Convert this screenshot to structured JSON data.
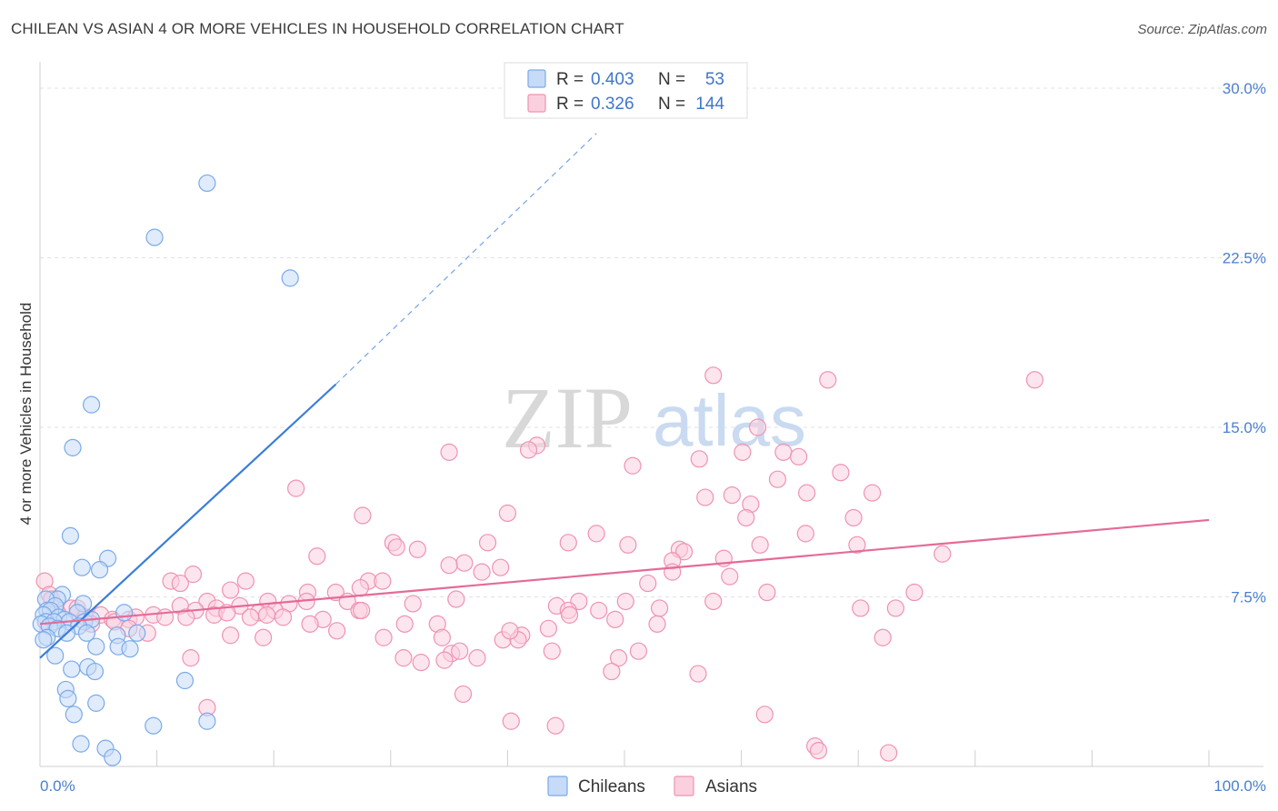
{
  "title": "CHILEAN VS ASIAN 4 OR MORE VEHICLES IN HOUSEHOLD CORRELATION CHART",
  "source": "Source: ZipAtlas.com",
  "watermark": {
    "zip": "ZIP",
    "atlas": "atlas"
  },
  "legend": {
    "r_label": "R =",
    "n_label": "N =",
    "series": [
      {
        "r": "0.403",
        "n": "53",
        "color": "#7aaae8",
        "fill": "#c6dbf7"
      },
      {
        "r": "0.326",
        "n": "144",
        "color": "#ee93b1",
        "fill": "#fbd0de"
      }
    ]
  },
  "bottom_legend": [
    {
      "label": "Chileans",
      "color": "#7aaae8",
      "fill": "#c6dbf7"
    },
    {
      "label": "Asians",
      "color": "#ee93b1",
      "fill": "#fbd0de"
    }
  ],
  "chart_data": {
    "type": "scatter",
    "title": "CHILEAN VS ASIAN 4 OR MORE VEHICLES IN HOUSEHOLD CORRELATION CHART",
    "xlabel": "",
    "ylabel": "4 or more Vehicles in Household",
    "xlim": [
      0,
      100
    ],
    "ylim": [
      0,
      30
    ],
    "x_tick_labels": [
      "0.0%",
      "100.0%"
    ],
    "y_ticks": [
      7.5,
      15.0,
      22.5,
      30.0
    ],
    "y_tick_labels": [
      "7.5%",
      "15.0%",
      "22.5%",
      "30.0%"
    ],
    "grid": true,
    "legend_position": "top-center",
    "series": [
      {
        "name": "Chileans",
        "color": "#3b7dd8",
        "marker_fill": "#c6dbf7",
        "marker_edge": "#7aaae8",
        "r": 0.403,
        "n": 53,
        "trend": {
          "x": [
            0,
            25.3
          ],
          "y": [
            4.8,
            16.9
          ],
          "dashed_to": [
            47.6,
            28.0
          ]
        },
        "points": [
          [
            14.3,
            25.8
          ],
          [
            9.8,
            23.4
          ],
          [
            21.4,
            21.6
          ],
          [
            4.4,
            16.0
          ],
          [
            2.8,
            14.1
          ],
          [
            2.6,
            10.2
          ],
          [
            5.8,
            9.2
          ],
          [
            3.6,
            8.8
          ],
          [
            5.1,
            8.7
          ],
          [
            1.9,
            7.6
          ],
          [
            1.5,
            7.4
          ],
          [
            0.5,
            7.4
          ],
          [
            1.3,
            7.1
          ],
          [
            3.7,
            7.2
          ],
          [
            0.6,
            6.9
          ],
          [
            0.9,
            6.9
          ],
          [
            3.2,
            6.8
          ],
          [
            0.3,
            6.7
          ],
          [
            1.6,
            6.6
          ],
          [
            2.1,
            6.5
          ],
          [
            0.5,
            6.4
          ],
          [
            1.2,
            6.4
          ],
          [
            2.5,
            6.4
          ],
          [
            3.8,
            6.4
          ],
          [
            4.4,
            6.5
          ],
          [
            0.1,
            6.3
          ],
          [
            0.8,
            6.2
          ],
          [
            1.5,
            6.1
          ],
          [
            3.3,
            6.2
          ],
          [
            4.0,
            5.9
          ],
          [
            2.3,
            5.9
          ],
          [
            0.6,
            5.7
          ],
          [
            0.3,
            5.6
          ],
          [
            8.3,
            5.9
          ],
          [
            7.2,
            6.8
          ],
          [
            6.6,
            5.8
          ],
          [
            6.7,
            5.3
          ],
          [
            4.8,
            5.3
          ],
          [
            7.7,
            5.2
          ],
          [
            1.3,
            4.9
          ],
          [
            4.1,
            4.4
          ],
          [
            2.7,
            4.3
          ],
          [
            4.7,
            4.2
          ],
          [
            12.4,
            3.8
          ],
          [
            2.2,
            3.4
          ],
          [
            2.4,
            3.0
          ],
          [
            4.8,
            2.8
          ],
          [
            2.9,
            2.3
          ],
          [
            9.7,
            1.8
          ],
          [
            14.3,
            2.0
          ],
          [
            3.5,
            1.0
          ],
          [
            5.6,
            0.8
          ],
          [
            6.2,
            0.4
          ]
        ]
      },
      {
        "name": "Asians",
        "color": "#e46b97",
        "marker_fill": "#fbd0de",
        "marker_edge": "#ee93b1",
        "r": 0.326,
        "n": 144,
        "trend": {
          "x": [
            0,
            100
          ],
          "y": [
            6.3,
            10.9
          ]
        },
        "points": [
          [
            57.6,
            17.3
          ],
          [
            67.4,
            17.1
          ],
          [
            85.1,
            17.1
          ],
          [
            61.4,
            15.0
          ],
          [
            42.5,
            14.2
          ],
          [
            41.8,
            14.0
          ],
          [
            35.0,
            13.9
          ],
          [
            60.1,
            13.9
          ],
          [
            63.6,
            13.9
          ],
          [
            64.9,
            13.7
          ],
          [
            56.4,
            13.6
          ],
          [
            50.7,
            13.3
          ],
          [
            68.5,
            13.0
          ],
          [
            63.1,
            12.7
          ],
          [
            21.9,
            12.3
          ],
          [
            59.2,
            12.0
          ],
          [
            65.6,
            12.1
          ],
          [
            71.2,
            12.1
          ],
          [
            56.9,
            11.9
          ],
          [
            60.8,
            11.6
          ],
          [
            40.0,
            11.2
          ],
          [
            27.6,
            11.1
          ],
          [
            60.4,
            11.0
          ],
          [
            69.6,
            11.0
          ],
          [
            47.6,
            10.3
          ],
          [
            65.5,
            10.3
          ],
          [
            30.2,
            9.9
          ],
          [
            38.3,
            9.9
          ],
          [
            45.2,
            9.9
          ],
          [
            50.3,
            9.8
          ],
          [
            30.5,
            9.7
          ],
          [
            32.3,
            9.6
          ],
          [
            54.7,
            9.6
          ],
          [
            61.6,
            9.8
          ],
          [
            69.9,
            9.8
          ],
          [
            77.2,
            9.4
          ],
          [
            23.7,
            9.3
          ],
          [
            55.1,
            9.5
          ],
          [
            54.1,
            9.1
          ],
          [
            36.3,
            9.0
          ],
          [
            35.0,
            8.9
          ],
          [
            58.5,
            9.2
          ],
          [
            37.8,
            8.6
          ],
          [
            39.4,
            8.8
          ],
          [
            59.0,
            8.4
          ],
          [
            54.1,
            8.6
          ],
          [
            13.1,
            8.5
          ],
          [
            0.4,
            8.2
          ],
          [
            11.2,
            8.2
          ],
          [
            12.0,
            8.1
          ],
          [
            17.6,
            8.2
          ],
          [
            28.1,
            8.2
          ],
          [
            29.3,
            8.2
          ],
          [
            52.0,
            8.1
          ],
          [
            27.4,
            7.9
          ],
          [
            0.8,
            7.6
          ],
          [
            16.3,
            7.8
          ],
          [
            22.9,
            7.7
          ],
          [
            25.3,
            7.7
          ],
          [
            62.2,
            7.7
          ],
          [
            74.8,
            7.7
          ],
          [
            1.0,
            7.4
          ],
          [
            2.7,
            7.0
          ],
          [
            26.3,
            7.3
          ],
          [
            35.6,
            7.4
          ],
          [
            19.5,
            7.3
          ],
          [
            21.3,
            7.2
          ],
          [
            14.3,
            7.3
          ],
          [
            17.1,
            7.1
          ],
          [
            20.1,
            6.9
          ],
          [
            44.2,
            7.1
          ],
          [
            46.1,
            7.3
          ],
          [
            50.1,
            7.3
          ],
          [
            53.0,
            7.0
          ],
          [
            57.6,
            7.3
          ],
          [
            70.2,
            7.0
          ],
          [
            3.2,
            7.0
          ],
          [
            12.0,
            7.1
          ],
          [
            13.3,
            6.9
          ],
          [
            15.1,
            7.0
          ],
          [
            18.7,
            6.8
          ],
          [
            27.3,
            6.9
          ],
          [
            22.8,
            7.3
          ],
          [
            31.9,
            7.2
          ],
          [
            47.8,
            6.9
          ],
          [
            1.5,
            6.8
          ],
          [
            3.9,
            6.6
          ],
          [
            5.2,
            6.7
          ],
          [
            6.2,
            6.5
          ],
          [
            7.6,
            6.5
          ],
          [
            8.2,
            6.6
          ],
          [
            9.7,
            6.7
          ],
          [
            10.7,
            6.6
          ],
          [
            12.5,
            6.6
          ],
          [
            14.9,
            6.7
          ],
          [
            16.0,
            6.8
          ],
          [
            19.4,
            6.7
          ],
          [
            24.2,
            6.5
          ],
          [
            27.5,
            6.9
          ],
          [
            31.2,
            6.3
          ],
          [
            34.0,
            6.3
          ],
          [
            45.2,
            6.9
          ],
          [
            49.2,
            6.5
          ],
          [
            52.8,
            6.3
          ],
          [
            4.4,
            6.3
          ],
          [
            6.4,
            6.4
          ],
          [
            7.6,
            6.1
          ],
          [
            9.2,
            5.9
          ],
          [
            23.1,
            6.3
          ],
          [
            25.4,
            6.0
          ],
          [
            43.5,
            6.1
          ],
          [
            41.2,
            5.8
          ],
          [
            39.6,
            5.6
          ],
          [
            34.4,
            5.7
          ],
          [
            19.1,
            5.7
          ],
          [
            16.3,
            5.8
          ],
          [
            20.8,
            6.6
          ],
          [
            29.4,
            5.7
          ],
          [
            72.1,
            5.7
          ],
          [
            51.2,
            5.1
          ],
          [
            43.8,
            5.1
          ],
          [
            37.4,
            4.8
          ],
          [
            35.2,
            5.0
          ],
          [
            34.6,
            4.7
          ],
          [
            49.5,
            4.8
          ],
          [
            31.1,
            4.8
          ],
          [
            32.6,
            4.6
          ],
          [
            48.9,
            4.2
          ],
          [
            56.3,
            4.1
          ],
          [
            12.9,
            4.8
          ],
          [
            73.2,
            7.0
          ],
          [
            40.9,
            5.6
          ],
          [
            35.9,
            5.1
          ],
          [
            40.2,
            6.0
          ],
          [
            45.3,
            6.7
          ],
          [
            36.2,
            3.2
          ],
          [
            14.3,
            2.6
          ],
          [
            62.0,
            2.3
          ],
          [
            40.3,
            2.0
          ],
          [
            44.1,
            1.8
          ],
          [
            66.3,
            0.9
          ],
          [
            66.6,
            0.7
          ],
          [
            72.6,
            0.6
          ],
          [
            18.0,
            6.6
          ]
        ]
      }
    ]
  }
}
